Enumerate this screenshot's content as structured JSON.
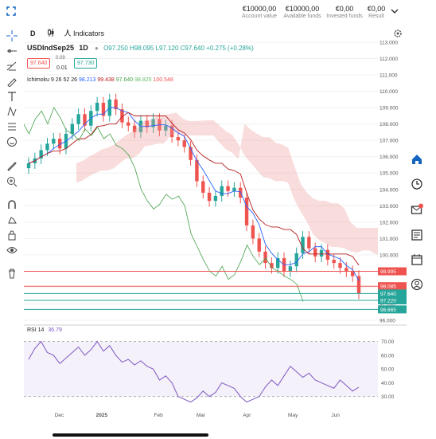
{
  "account": {
    "items": [
      {
        "value": "€10000,00",
        "label": "Account value"
      },
      {
        "value": "€10000,00",
        "label": "Available funds"
      },
      {
        "value": "€0,00",
        "label": "Invested funds"
      },
      {
        "value": "€0,00",
        "label": "Result"
      }
    ]
  },
  "toolbar": {
    "interval": "D",
    "indicators_label": "Indicators"
  },
  "legend": {
    "symbol": "USDIndSep25",
    "timeframe": "1D",
    "open": "O97.250",
    "high": "H98.095",
    "low": "L97.120",
    "close": "C97.640",
    "change": "+0.275 (+0.28%)",
    "sell_price": "97.640",
    "spread_top": "0.09",
    "spread_bottom": "0.01",
    "buy_price": "97.730"
  },
  "ichimoku": {
    "label": "Ichimoku 9 26 52 26",
    "v1": "98.213",
    "v2": "99.438",
    "v3": "97.640",
    "v4": "98.825",
    "v5": "100.548"
  },
  "rsi": {
    "label": "RSI 14",
    "value": "36.79"
  },
  "colors": {
    "up": "#26a69a",
    "down": "#ef5350",
    "tenkan": "#2962ff",
    "kijun": "#b71c1c",
    "lagging": "#43a047",
    "cloud_up": "#a5d6a7",
    "cloud_down": "#ef9a9a",
    "rsi": "#7e57c2",
    "accent": "#1565c0"
  },
  "chart_data": {
    "type": "line",
    "title": "",
    "xlabel": "",
    "ylabel": "",
    "x_ticks": [
      "Dec",
      "2025",
      "Feb",
      "Mar",
      "Apr",
      "May",
      "Jun"
    ],
    "price_axis": {
      "ylim": [
        96.0,
        113.0
      ],
      "ticks": [
        "113.000",
        "112.000",
        "111.000",
        "110.000",
        "109.000",
        "108.000",
        "107.000",
        "106.000",
        "105.000",
        "104.000",
        "103.000",
        "102.000",
        "101.000",
        "100.000",
        "99.000",
        "98.000",
        "97.000",
        "96.000"
      ]
    },
    "price_tags": [
      {
        "value": "98.995",
        "color": "#ef5350"
      },
      {
        "value": "98.085",
        "color": "#ef5350"
      },
      {
        "value": "97.640",
        "color": "#26a69a"
      },
      {
        "value": "97.220",
        "color": "#26a69a"
      },
      {
        "value": "96.665",
        "color": "#26a69a"
      }
    ],
    "series": [
      {
        "name": "Close",
        "values": [
          105.6,
          105.9,
          106.4,
          106.8,
          107.1,
          106.5,
          107.4,
          108.0,
          108.6,
          107.9,
          108.8,
          109.3,
          108.5,
          109.5,
          108.9,
          108.1,
          107.9,
          107.5,
          108.2,
          107.8,
          108.3,
          107.6,
          107.9,
          107.2,
          107.0,
          106.6,
          105.8,
          104.5,
          103.8,
          103.3,
          103.6,
          104.2,
          103.9,
          104.1,
          103.5,
          101.8,
          101.0,
          100.2,
          99.5,
          99.2,
          99.8,
          99.0,
          99.3,
          100.1,
          101.1,
          100.4,
          99.9,
          100.3,
          99.7,
          99.5,
          99.2,
          99.0,
          98.7,
          97.64
        ]
      }
    ],
    "rsi": {
      "ylim": [
        20,
        75
      ],
      "ticks": [
        "70.00",
        "60.00",
        "50.00",
        "40.00",
        "30.00"
      ],
      "values": [
        57,
        65,
        70,
        62,
        60,
        54,
        58,
        62,
        66,
        60,
        64,
        70,
        63,
        67,
        60,
        55,
        57,
        53,
        56,
        52,
        50,
        42,
        45,
        40,
        30,
        28,
        26,
        29,
        34,
        30,
        33,
        40,
        38,
        36,
        30,
        26,
        28,
        30,
        37,
        42,
        38,
        45,
        52,
        48,
        44,
        47,
        42,
        40,
        38,
        36,
        42,
        38,
        34,
        36.79
      ]
    }
  }
}
